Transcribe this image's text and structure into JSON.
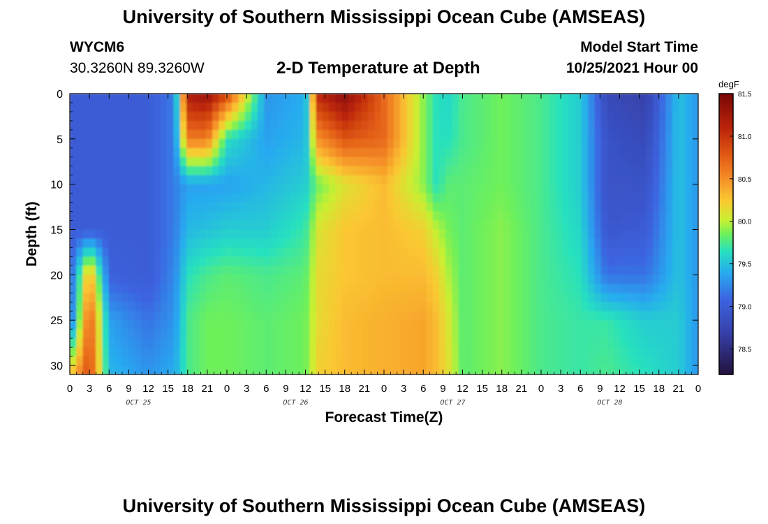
{
  "header": {
    "title": "University of Southern Mississippi Ocean Cube (AMSEAS)",
    "station_id": "WYCM6",
    "station_coords": "30.3260N  89.3260W",
    "plot_title": "2-D Temperature at Depth",
    "start_label": "Model Start Time",
    "start_value": "10/25/2021 Hour 00"
  },
  "footer": {
    "title": "University of Southern Mississippi Ocean Cube (AMSEAS)"
  },
  "chart_data": {
    "type": "heatmap",
    "title": "2-D Temperature at Depth",
    "xlabel": "Forecast Time(Z)",
    "ylabel": "Depth (ft)",
    "xlim": [
      0,
      96
    ],
    "ylim": [
      31,
      0
    ],
    "x_ticks": [
      "0",
      "3",
      "6",
      "9",
      "12",
      "15",
      "18",
      "21",
      "0",
      "3",
      "6",
      "9",
      "12",
      "15",
      "18",
      "21",
      "0",
      "3",
      "6",
      "9",
      "12",
      "15",
      "18",
      "21",
      "0",
      "3",
      "6",
      "9",
      "12",
      "15",
      "18",
      "21",
      "0"
    ],
    "y_ticks": [
      "0",
      "5",
      "10",
      "15",
      "20",
      "25",
      "30"
    ],
    "day_labels": [
      "OCT 25",
      "OCT 26",
      "OCT 27",
      "OCT 28"
    ],
    "colorbar": {
      "unit": "degF",
      "ticks": [
        "78.5",
        "79.0",
        "79.5",
        "80.0",
        "80.5",
        "81.0",
        "81.5"
      ],
      "range": [
        78.2,
        81.5
      ]
    },
    "profiles_degF": {
      "depths_ft": [
        0,
        5,
        10,
        15,
        20,
        25,
        31
      ],
      "hours": [
        0,
        3,
        6,
        12,
        16,
        18,
        21,
        24,
        30,
        36,
        38,
        42,
        48,
        54,
        56,
        58,
        60,
        66,
        72,
        78,
        82,
        88,
        93,
        96
      ],
      "values": [
        [
          79.0,
          79.0,
          79.0,
          79.0,
          79.0,
          79.0,
          80.2
        ],
        [
          79.0,
          79.0,
          79.0,
          79.0,
          80.4,
          80.8,
          80.9
        ],
        [
          79.0,
          79.0,
          79.0,
          79.0,
          79.05,
          79.35,
          79.45
        ],
        [
          79.0,
          79.0,
          79.0,
          79.0,
          79.0,
          79.15,
          79.3
        ],
        [
          79.2,
          79.2,
          79.2,
          79.2,
          79.25,
          79.3,
          79.4
        ],
        [
          81.2,
          80.6,
          79.35,
          79.45,
          79.65,
          79.75,
          79.75
        ],
        [
          81.3,
          80.6,
          79.35,
          79.5,
          79.75,
          79.85,
          79.85
        ],
        [
          80.9,
          79.65,
          79.35,
          79.55,
          79.8,
          79.85,
          79.85
        ],
        [
          79.3,
          79.35,
          79.45,
          79.55,
          79.75,
          79.8,
          79.8
        ],
        [
          79.4,
          79.45,
          79.55,
          79.7,
          79.8,
          79.85,
          79.85
        ],
        [
          81.1,
          80.5,
          79.85,
          80.1,
          80.15,
          80.15,
          80.2
        ],
        [
          81.4,
          80.8,
          80.1,
          80.25,
          80.25,
          80.3,
          80.3
        ],
        [
          80.7,
          80.7,
          80.3,
          80.3,
          80.3,
          80.35,
          80.35
        ],
        [
          79.9,
          79.9,
          79.9,
          80.2,
          80.3,
          80.4,
          80.4
        ],
        [
          79.65,
          79.65,
          79.65,
          80.0,
          80.2,
          80.3,
          80.3
        ],
        [
          79.6,
          79.65,
          79.8,
          79.85,
          79.95,
          80.05,
          80.1
        ],
        [
          79.75,
          79.75,
          79.8,
          79.8,
          79.8,
          79.8,
          79.8
        ],
        [
          79.85,
          79.85,
          79.85,
          79.9,
          79.9,
          79.9,
          79.9
        ],
        [
          79.75,
          79.75,
          79.75,
          79.75,
          79.75,
          79.75,
          79.75
        ],
        [
          79.55,
          79.55,
          79.55,
          79.6,
          79.65,
          79.7,
          79.7
        ],
        [
          78.8,
          78.9,
          78.9,
          78.95,
          79.15,
          79.7,
          79.75
        ],
        [
          78.7,
          78.8,
          78.9,
          79.0,
          79.15,
          79.55,
          79.65
        ],
        [
          79.5,
          79.5,
          79.5,
          79.5,
          79.5,
          79.55,
          79.55
        ],
        [
          79.3,
          79.3,
          79.3,
          79.3,
          79.3,
          79.3,
          79.3
        ]
      ]
    }
  }
}
